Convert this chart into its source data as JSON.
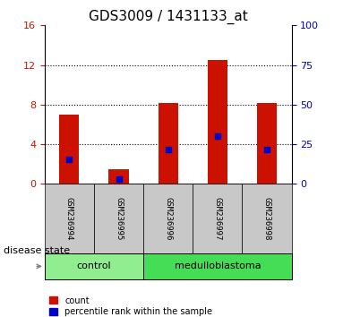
{
  "title": "GDS3009 / 1431133_at",
  "samples": [
    "GSM236994",
    "GSM236995",
    "GSM236996",
    "GSM236997",
    "GSM236998"
  ],
  "count_values": [
    7.0,
    1.5,
    8.2,
    12.5,
    8.2
  ],
  "percentile_values": [
    2.5,
    0.5,
    3.5,
    4.8,
    3.5
  ],
  "disease_groups": [
    {
      "label": "control",
      "samples": [
        "GSM236994",
        "GSM236995"
      ],
      "color": "#90EE90"
    },
    {
      "label": "medulloblastoma",
      "samples": [
        "GSM236996",
        "GSM236997",
        "GSM236998"
      ],
      "color": "#00CC44"
    }
  ],
  "ylim_left": [
    0,
    16
  ],
  "ylim_right": [
    0,
    100
  ],
  "yticks_left": [
    0,
    4,
    8,
    12,
    16
  ],
  "yticks_right": [
    0,
    25,
    50,
    75,
    100
  ],
  "bar_color": "#CC1100",
  "percentile_color": "#0000CC",
  "bar_width": 0.4,
  "grid_yticks": [
    4,
    8,
    12
  ],
  "title_fontsize": 11,
  "tick_label_fontsize": 8,
  "axis_label_color_left": "#CC1100",
  "axis_label_color_right": "#0000CC",
  "legend_count_label": "count",
  "legend_percentile_label": "percentile rank within the sample",
  "disease_state_label": "disease state",
  "plot_bg_color": "#FFFFFF",
  "tick_area_color": "#C8C8C8"
}
